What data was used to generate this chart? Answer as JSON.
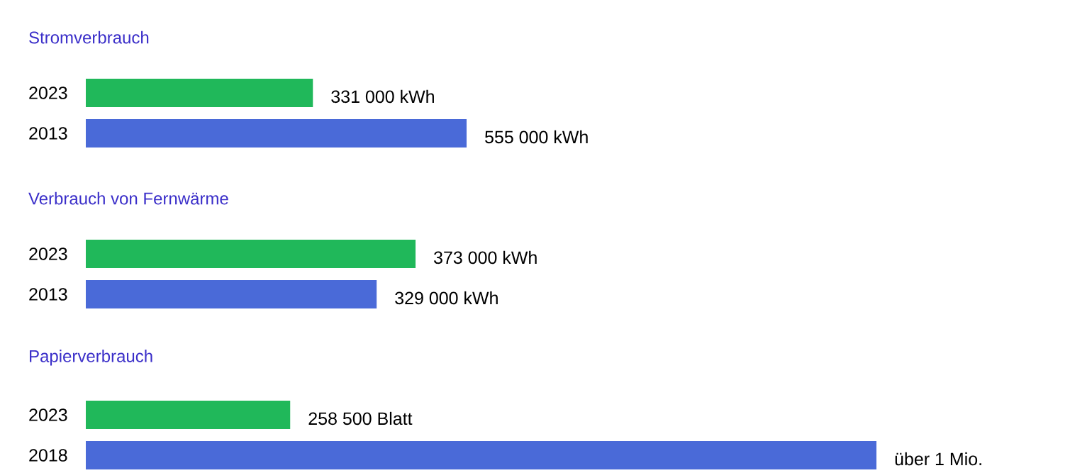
{
  "chart_data": [
    {
      "type": "bar",
      "orientation": "horizontal",
      "title": "Stromverbrauch",
      "categories": [
        "2023",
        "2013"
      ],
      "values": [
        331000,
        555000
      ],
      "colors": [
        "#20b85a",
        "#4a6ad8"
      ],
      "value_labels": [
        "331 000 kWh",
        "555 000 kWh"
      ],
      "tick_labels": "y"
    },
    {
      "type": "bar",
      "orientation": "horizontal",
      "title": "Verbrauch von Fernwärme",
      "categories": [
        "2023",
        "2013"
      ],
      "values": [
        373000,
        329000
      ],
      "colors": [
        "#20b85a",
        "#4a6ad8"
      ],
      "value_labels": [
        "373 000 kWh",
        "329 000 kWh"
      ],
      "tick_labels": "y"
    },
    {
      "type": "bar",
      "orientation": "horizontal",
      "title": "Papierverbrauch",
      "categories": [
        "2023",
        "2018"
      ],
      "values": [
        258500,
        1000000
      ],
      "colors": [
        "#20b85a",
        "#4a6ad8"
      ],
      "value_labels": [
        "258 500 Blatt",
        "über 1 Mio."
      ],
      "tick_labels": "y"
    }
  ]
}
